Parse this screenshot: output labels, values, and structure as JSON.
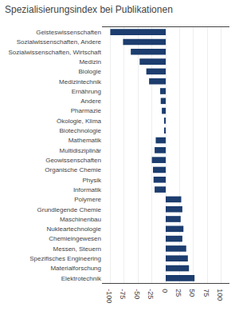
{
  "chart_data": {
    "type": "bar",
    "orientation": "horizontal",
    "title": "Spezialisierungsindex bei Publikationen",
    "categories": [
      "Geisteswissenschaften",
      "Sozialwissenschaften, Andere",
      "Sozialwissenschaften, Wirtschaft",
      "Medizin",
      "Biologie",
      "Medizintechnik",
      "Ernährung",
      "Andere",
      "Pharmazie",
      "Ökologie, Klima",
      "Biotechnologie",
      "Mathematik",
      "Multidisziplinär",
      "Geowissenschaften",
      "Organische Chemie",
      "Physik",
      "Informatik",
      "Polymere",
      "Grundlegende Chemie",
      "Maschinenbau",
      "Nukleartechnologie",
      "Chemieingewesen",
      "Messen, Steuern",
      "Spezifisches Engineering",
      "Materialforschung",
      "Elektrotechnik"
    ],
    "values": [
      -100,
      -77,
      -63,
      -47,
      -35,
      -30,
      -10,
      -9,
      -7,
      -3,
      -2,
      -18,
      -20,
      -25,
      -23,
      -22,
      -20,
      28,
      30,
      27,
      32,
      30,
      37,
      40,
      42,
      52
    ],
    "color": "#1c3d6e",
    "xlim": [
      -115,
      115
    ],
    "xticks": [
      -100,
      -75,
      -50,
      -25,
      0,
      25,
      50,
      75,
      100
    ],
    "grid": true
  }
}
